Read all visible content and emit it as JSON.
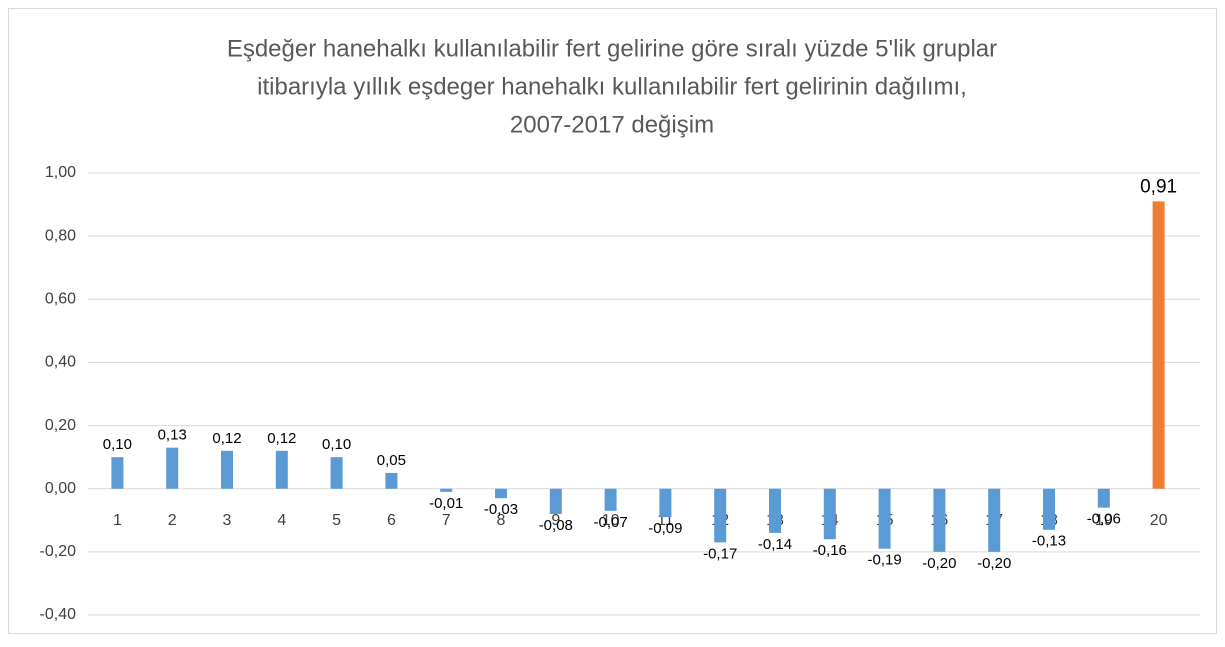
{
  "chart_data": {
    "type": "bar",
    "title": [
      "Eşdeğer hanehalkı kullanılabilir fert gelirine göre sıralı yüzde 5'lik gruplar",
      "itibarıyla yıllık eşdeger hanehalkı kullanılabilir fert gelirinin dağılımı,",
      "2007-2017 değişim"
    ],
    "categories": [
      "1",
      "2",
      "3",
      "4",
      "5",
      "6",
      "7",
      "8",
      "9",
      "10",
      "11",
      "12",
      "13",
      "14",
      "15",
      "16",
      "17",
      "18",
      "19",
      "20"
    ],
    "values": [
      0.1,
      0.13,
      0.12,
      0.12,
      0.1,
      0.05,
      -0.01,
      -0.03,
      -0.08,
      -0.07,
      -0.09,
      -0.17,
      -0.14,
      -0.16,
      -0.19,
      -0.2,
      -0.2,
      -0.13,
      -0.06,
      0.91
    ],
    "value_labels": [
      "0,10",
      "0,13",
      "0,12",
      "0,12",
      "0,10",
      "0,05",
      "-0,01",
      "-0,03",
      "-0,08",
      "-0,07",
      "-0,09",
      "-0,17",
      "-0,14",
      "-0,16",
      "-0,19",
      "-0,20",
      "-0,20",
      "-0,13",
      "-0,06",
      "0,91"
    ],
    "colors": [
      "#5b9bd5",
      "#5b9bd5",
      "#5b9bd5",
      "#5b9bd5",
      "#5b9bd5",
      "#5b9bd5",
      "#5b9bd5",
      "#5b9bd5",
      "#5b9bd5",
      "#5b9bd5",
      "#5b9bd5",
      "#5b9bd5",
      "#5b9bd5",
      "#5b9bd5",
      "#5b9bd5",
      "#5b9bd5",
      "#5b9bd5",
      "#5b9bd5",
      "#5b9bd5",
      "#ed7d31"
    ],
    "ylim": [
      -0.4,
      1.0
    ],
    "yticks": [
      {
        "value": -0.4,
        "label": "-0,40"
      },
      {
        "value": -0.2,
        "label": "-0,20"
      },
      {
        "value": 0,
        "label": "0,00"
      },
      {
        "value": 0.2,
        "label": "0,20"
      },
      {
        "value": 0.4,
        "label": "0,40"
      },
      {
        "value": 0.6,
        "label": "0,60"
      },
      {
        "value": 0.8,
        "label": "0,80"
      },
      {
        "value": 1.0,
        "label": "1,00"
      }
    ],
    "grid": true
  }
}
